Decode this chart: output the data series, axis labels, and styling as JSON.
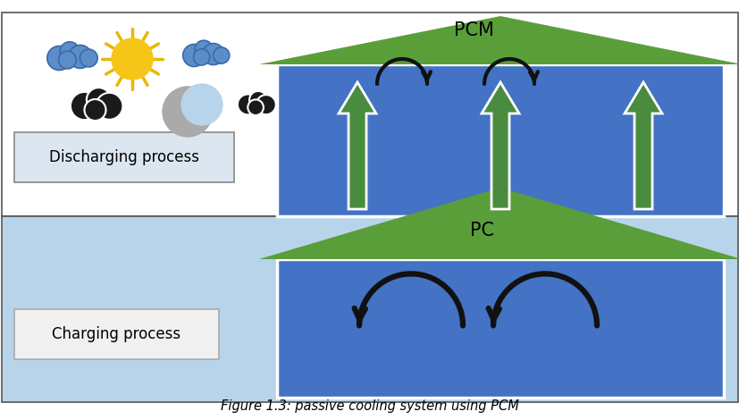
{
  "top_bg": "#ffffff",
  "bottom_bg": "#b8d4ea",
  "house_roof_color": "#5a9e3a",
  "house_wall_color": "#4472c4",
  "house_wall_edge": "#ffffff",
  "label_box_color": "#dce6f1",
  "label_box_edge_top": "#888888",
  "label_box_edge_bot": "#aaaaaa",
  "arrow_up_fill": "#4a8c3f",
  "arrow_up_edge": "#ffffff",
  "curl_arrow_color": "#111111",
  "sun_color": "#f5c518",
  "sun_ray_color": "#e8b800",
  "cloud_blue": "#5b8ec9",
  "cloud_edge": "#3a6aaa",
  "moon_color": "#aaaaaa",
  "dark_cloud_color": "#1a1a1a",
  "dark_cloud_edge": "#ffffff",
  "pcm_label": "PCM",
  "pc_label": "PC",
  "discharging_label": "Discharging process",
  "charging_label": "Charging process",
  "fig_caption": "Figure 1.3: passive cooling system using PCM",
  "top_border_color": "#555555",
  "bottom_border_color": "#555555"
}
